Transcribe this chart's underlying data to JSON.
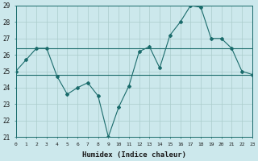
{
  "title": "",
  "xlabel": "Humidex (Indice chaleur)",
  "ylabel": "",
  "bg_color": "#cce8ec",
  "grid_color": "#aacccc",
  "line_color": "#1a6b6b",
  "x_values": [
    0,
    1,
    2,
    3,
    4,
    5,
    6,
    7,
    8,
    9,
    10,
    11,
    12,
    13,
    14,
    15,
    16,
    17,
    18,
    19,
    20,
    21,
    22,
    23
  ],
  "series1": [
    25.0,
    25.7,
    26.4,
    26.4,
    24.7,
    23.6,
    24.0,
    24.3,
    23.5,
    21.0,
    22.8,
    24.1,
    26.2,
    26.5,
    25.2,
    27.2,
    28.0,
    29.0,
    28.9,
    27.0,
    27.0,
    26.4,
    25.0,
    24.8
  ],
  "series2_flat1": [
    26.4,
    26.4,
    26.4,
    26.4,
    26.4,
    26.4,
    26.4,
    26.4,
    26.4,
    26.4,
    26.4,
    26.4,
    26.4,
    26.4,
    26.4,
    26.4,
    26.4,
    26.4,
    26.4,
    26.4,
    26.4,
    26.4,
    26.4,
    26.4
  ],
  "series2_flat2": [
    24.8,
    24.8,
    24.8,
    24.8,
    24.8,
    24.8,
    24.8,
    24.8,
    24.8,
    24.8,
    24.8,
    24.8,
    24.8,
    24.8,
    24.8,
    24.8,
    24.8,
    24.8,
    24.8,
    24.8,
    24.8,
    24.8,
    24.8,
    24.8
  ],
  "ylim_min": 21,
  "ylim_max": 29,
  "xlim_min": 0,
  "xlim_max": 23,
  "yticks": [
    21,
    22,
    23,
    24,
    25,
    26,
    27,
    28,
    29
  ],
  "xticks": [
    0,
    1,
    2,
    3,
    4,
    5,
    6,
    7,
    8,
    9,
    10,
    11,
    12,
    13,
    14,
    15,
    16,
    17,
    18,
    19,
    20,
    21,
    22,
    23
  ]
}
